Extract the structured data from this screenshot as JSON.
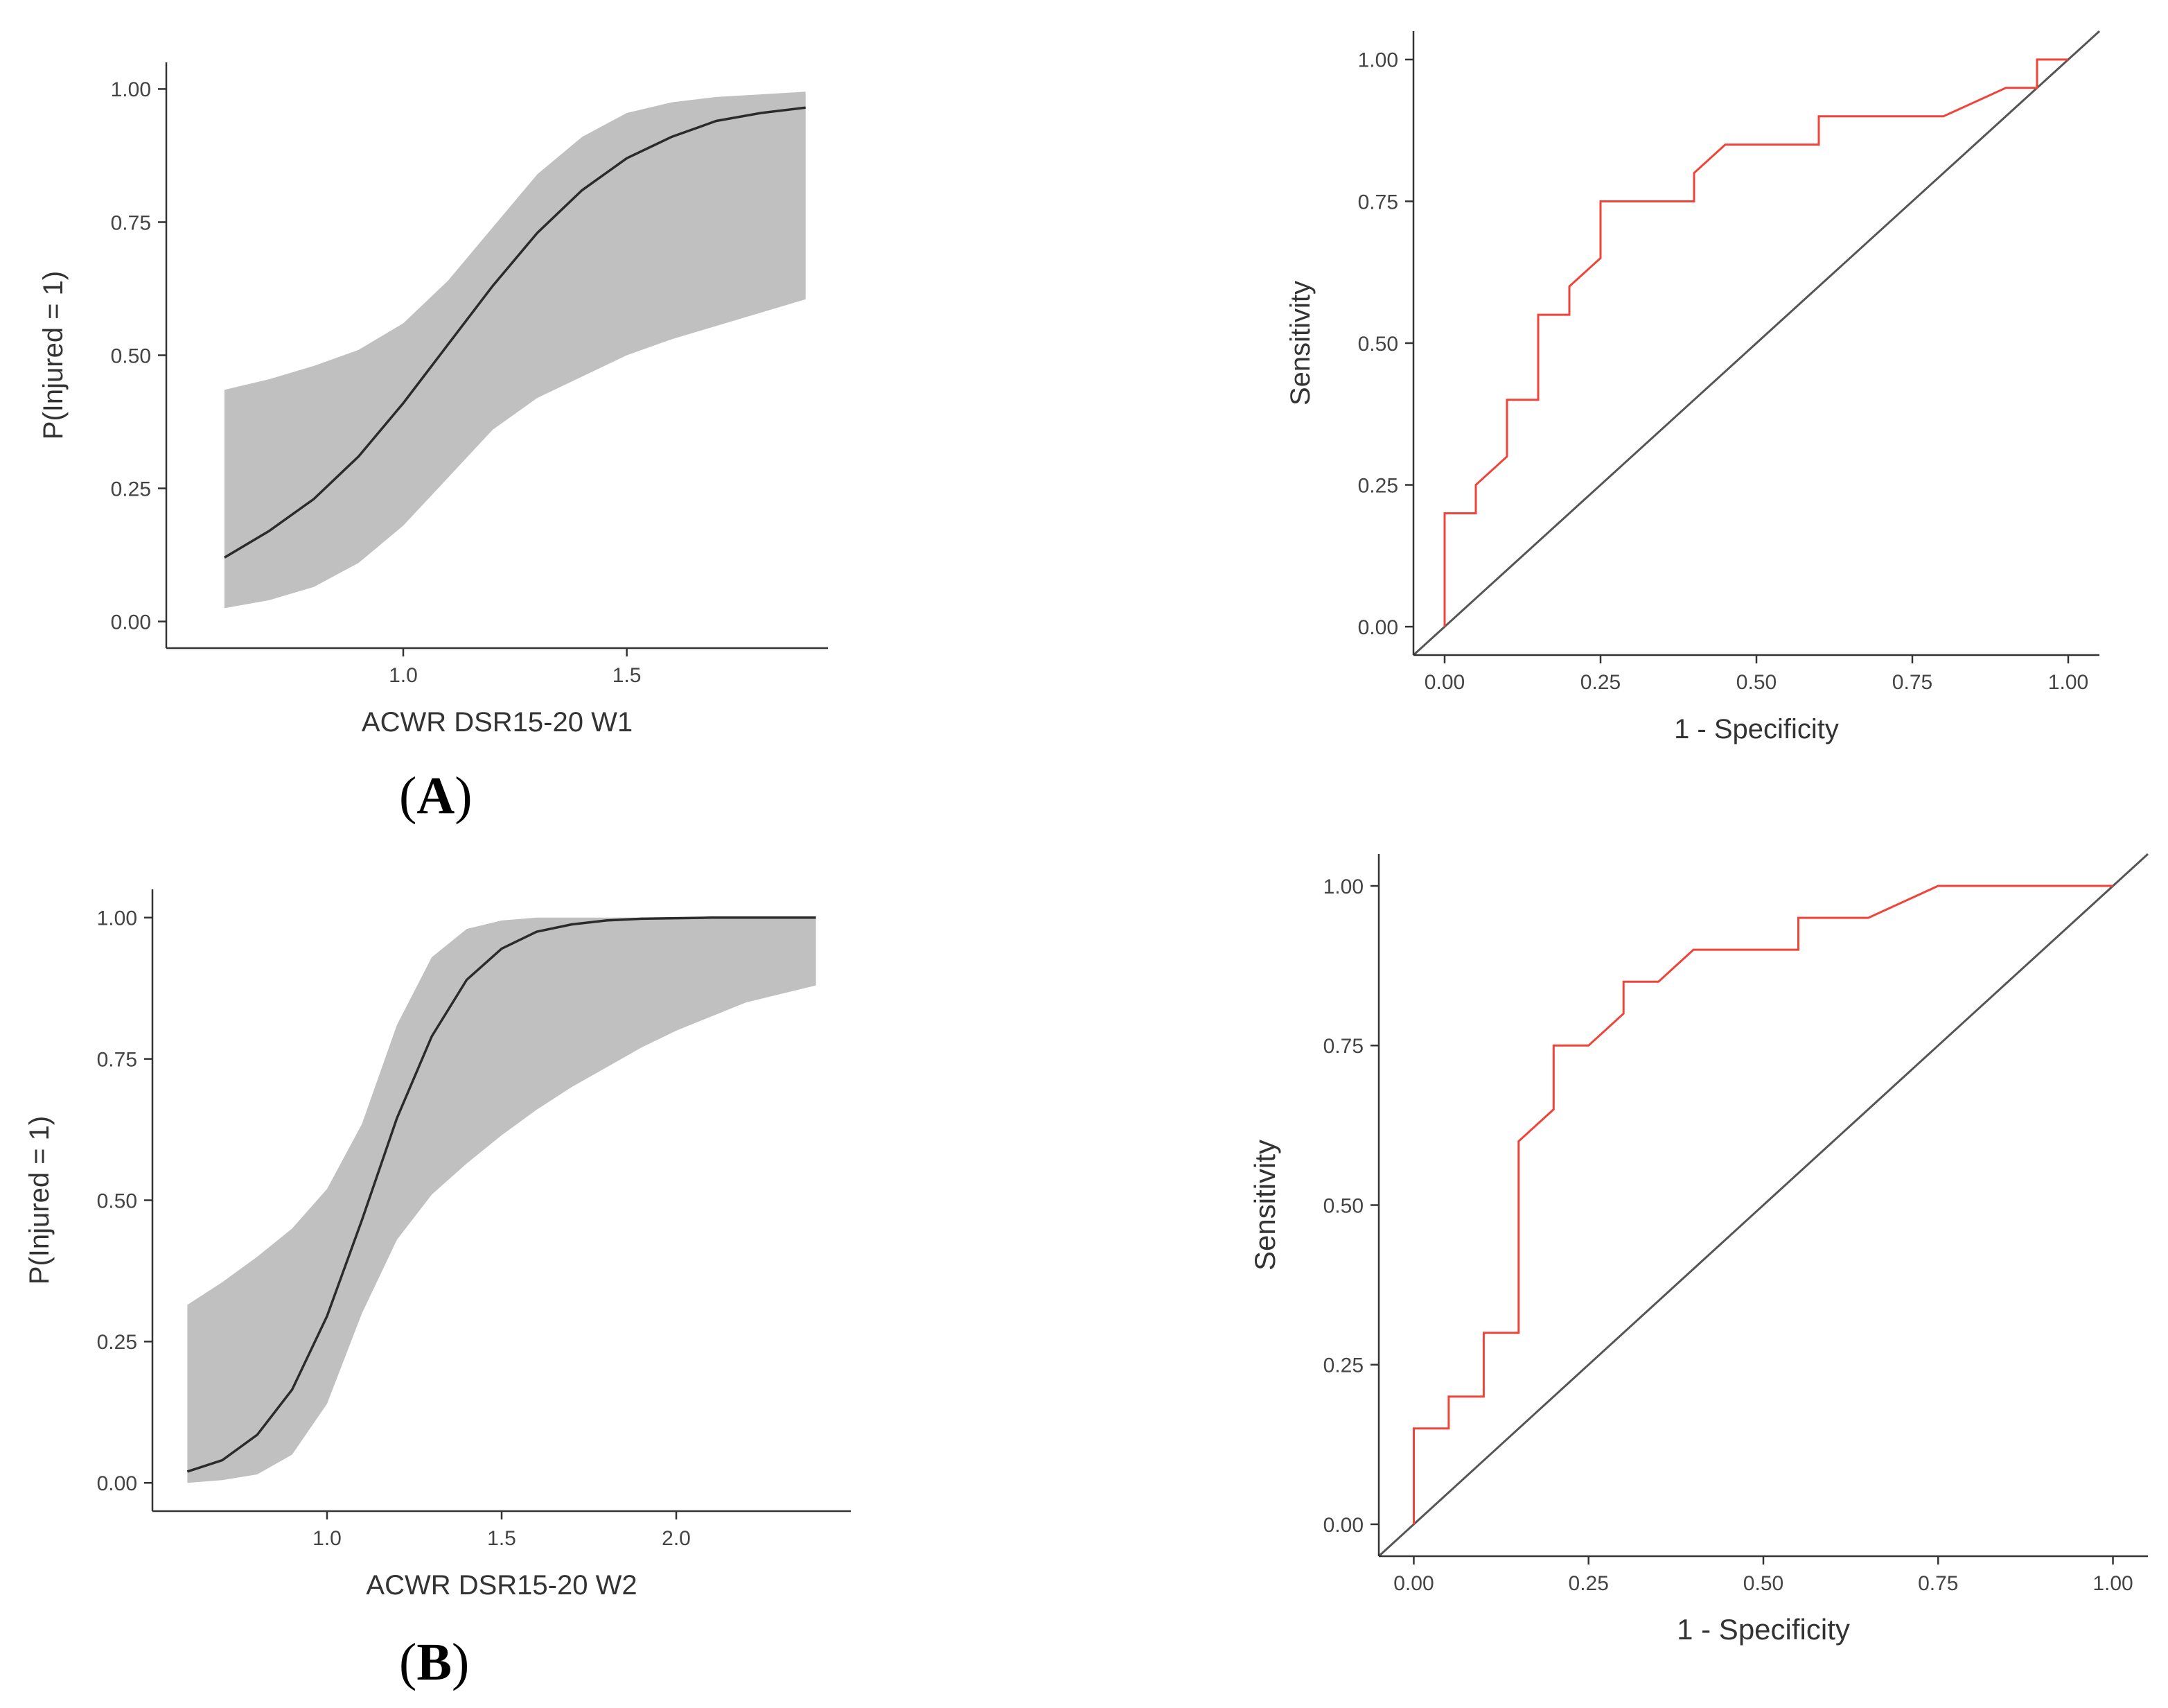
{
  "panel_labels": {
    "a": {
      "open": "(",
      "letter": "A",
      "close": ")"
    },
    "b": {
      "open": "(",
      "letter": "B",
      "close": ")"
    }
  },
  "colors": {
    "ci_band": "#c0c0c0",
    "fit_line": "#2b2b2b",
    "roc_line": "#f0433a",
    "diagonal": "#555555",
    "axis": "#333333",
    "tick_text": "#444444"
  },
  "chart_data": [
    {
      "id": "chart-a-logistic",
      "type": "line",
      "title": "",
      "xlabel": "ACWR DSR15-20 W1",
      "ylabel": "P(Injured = 1)",
      "xlim": [
        0.47,
        1.95
      ],
      "ylim": [
        -0.05,
        1.05
      ],
      "xticks": [
        1.0,
        1.5
      ],
      "xtick_labels": [
        "1.0",
        "1.5"
      ],
      "yticks": [
        0.0,
        0.25,
        0.5,
        0.75,
        1.0
      ],
      "ytick_labels": [
        "0.00",
        "0.25",
        "0.50",
        "0.75",
        "1.00"
      ],
      "x": [
        0.6,
        0.7,
        0.8,
        0.9,
        1.0,
        1.1,
        1.2,
        1.3,
        1.4,
        1.5,
        1.6,
        1.7,
        1.8,
        1.9
      ],
      "fit": [
        0.12,
        0.17,
        0.23,
        0.31,
        0.41,
        0.52,
        0.63,
        0.73,
        0.81,
        0.87,
        0.91,
        0.94,
        0.955,
        0.965
      ],
      "lower": [
        0.025,
        0.04,
        0.065,
        0.11,
        0.18,
        0.27,
        0.36,
        0.42,
        0.46,
        0.5,
        0.53,
        0.555,
        0.58,
        0.605
      ],
      "upper": [
        0.435,
        0.455,
        0.48,
        0.51,
        0.56,
        0.64,
        0.74,
        0.84,
        0.91,
        0.955,
        0.975,
        0.985,
        0.99,
        0.995
      ]
    },
    {
      "id": "chart-a-roc",
      "type": "line",
      "title": "",
      "xlabel": "1 - Specificity",
      "ylabel": "Sensitivity",
      "xlim": [
        -0.05,
        1.05
      ],
      "ylim": [
        -0.05,
        1.05
      ],
      "xticks": [
        0.0,
        0.25,
        0.5,
        0.75,
        1.0
      ],
      "xtick_labels": [
        "0.00",
        "0.25",
        "0.50",
        "0.75",
        "1.00"
      ],
      "yticks": [
        0.0,
        0.25,
        0.5,
        0.75,
        1.0
      ],
      "ytick_labels": [
        "0.00",
        "0.25",
        "0.50",
        "0.75",
        "1.00"
      ],
      "roc": {
        "x": [
          0,
          0,
          0.05,
          0.05,
          0.1,
          0.1,
          0.15,
          0.15,
          0.2,
          0.2,
          0.25,
          0.25,
          0.4,
          0.4,
          0.45,
          0.6,
          0.6,
          0.8,
          0.9,
          0.95,
          0.95,
          1.0
        ],
        "y": [
          0,
          0.2,
          0.2,
          0.25,
          0.3,
          0.4,
          0.4,
          0.55,
          0.55,
          0.6,
          0.65,
          0.75,
          0.75,
          0.8,
          0.85,
          0.85,
          0.9,
          0.9,
          0.95,
          0.95,
          1.0,
          1.0
        ]
      },
      "diagonal": {
        "x": [
          -0.05,
          1.05
        ],
        "y": [
          -0.05,
          1.05
        ]
      }
    },
    {
      "id": "chart-b-logistic",
      "type": "line",
      "title": "",
      "xlabel": "ACWR DSR15-20 W2",
      "ylabel": "P(Injured = 1)",
      "xlim": [
        0.5,
        2.5
      ],
      "ylim": [
        -0.05,
        1.05
      ],
      "xticks": [
        1.0,
        1.5,
        2.0
      ],
      "xtick_labels": [
        "1.0",
        "1.5",
        "2.0"
      ],
      "yticks": [
        0.0,
        0.25,
        0.5,
        0.75,
        1.0
      ],
      "ytick_labels": [
        "0.00",
        "0.25",
        "0.50",
        "0.75",
        "1.00"
      ],
      "x": [
        0.6,
        0.7,
        0.8,
        0.9,
        1.0,
        1.1,
        1.2,
        1.3,
        1.4,
        1.5,
        1.6,
        1.7,
        1.8,
        1.9,
        2.0,
        2.1,
        2.2,
        2.3,
        2.4
      ],
      "fit": [
        0.02,
        0.04,
        0.085,
        0.165,
        0.295,
        0.465,
        0.645,
        0.79,
        0.89,
        0.945,
        0.975,
        0.988,
        0.995,
        0.998,
        0.999,
        1.0,
        1.0,
        1.0,
        1.0
      ],
      "lower": [
        0.0,
        0.005,
        0.015,
        0.05,
        0.14,
        0.3,
        0.43,
        0.51,
        0.565,
        0.615,
        0.66,
        0.7,
        0.735,
        0.77,
        0.8,
        0.825,
        0.85,
        0.865,
        0.88
      ],
      "upper": [
        0.315,
        0.355,
        0.4,
        0.45,
        0.52,
        0.635,
        0.81,
        0.93,
        0.98,
        0.995,
        1.0,
        1.0,
        1.0,
        1.0,
        1.0,
        1.0,
        1.0,
        1.0,
        1.0
      ]
    },
    {
      "id": "chart-b-roc",
      "type": "line",
      "title": "",
      "xlabel": "1 - Specificity",
      "ylabel": "Sensitivity",
      "xlim": [
        -0.05,
        1.05
      ],
      "ylim": [
        -0.05,
        1.05
      ],
      "xticks": [
        0.0,
        0.25,
        0.5,
        0.75,
        1.0
      ],
      "xtick_labels": [
        "0.00",
        "0.25",
        "0.50",
        "0.75",
        "1.00"
      ],
      "yticks": [
        0.0,
        0.25,
        0.5,
        0.75,
        1.0
      ],
      "ytick_labels": [
        "0.00",
        "0.25",
        "0.50",
        "0.75",
        "1.00"
      ],
      "roc": {
        "x": [
          0,
          0,
          0.05,
          0.05,
          0.1,
          0.1,
          0.15,
          0.15,
          0.2,
          0.2,
          0.25,
          0.3,
          0.3,
          0.35,
          0.4,
          0.55,
          0.55,
          0.65,
          0.75,
          1.0
        ],
        "y": [
          0,
          0.15,
          0.15,
          0.2,
          0.2,
          0.3,
          0.3,
          0.6,
          0.65,
          0.75,
          0.75,
          0.8,
          0.85,
          0.85,
          0.9,
          0.9,
          0.95,
          0.95,
          1.0,
          1.0
        ]
      },
      "diagonal": {
        "x": [
          -0.05,
          1.05
        ],
        "y": [
          -0.05,
          1.05
        ]
      }
    }
  ]
}
